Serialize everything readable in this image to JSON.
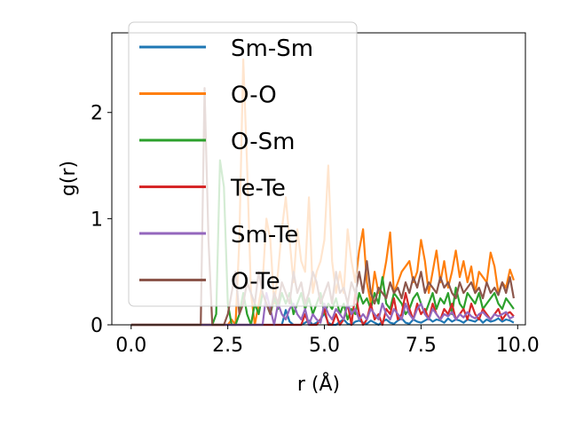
{
  "chart_data": {
    "type": "line",
    "title": "",
    "xlabel": "r (Å)",
    "ylabel": "g(r)",
    "xlim": [
      -0.5,
      10.2
    ],
    "ylim": [
      0,
      2.75
    ],
    "x_ticks": [
      "0.0",
      "2.5",
      "5.0",
      "7.5",
      "10.0"
    ],
    "x_tick_values": [
      0,
      2.5,
      5,
      7.5,
      10
    ],
    "y_ticks": [
      "0",
      "1",
      "2"
    ],
    "y_tick_values": [
      0,
      1,
      2
    ],
    "grid": false,
    "legend_position": "top-left",
    "x": [
      0.0,
      0.1,
      0.2,
      0.3,
      0.4,
      0.5,
      0.6,
      0.7,
      0.8,
      0.9,
      1.0,
      1.1,
      1.2,
      1.3,
      1.4,
      1.5,
      1.6,
      1.7,
      1.8,
      1.9,
      2.0,
      2.1,
      2.2,
      2.3,
      2.4,
      2.5,
      2.6,
      2.7,
      2.8,
      2.9,
      3.0,
      3.1,
      3.2,
      3.3,
      3.4,
      3.5,
      3.6,
      3.7,
      3.8,
      3.9,
      4.0,
      4.1,
      4.2,
      4.3,
      4.4,
      4.5,
      4.6,
      4.7,
      4.8,
      4.9,
      5.0,
      5.1,
      5.2,
      5.3,
      5.4,
      5.5,
      5.6,
      5.7,
      5.8,
      5.9,
      6.0,
      6.1,
      6.2,
      6.3,
      6.4,
      6.5,
      6.6,
      6.7,
      6.8,
      6.9,
      7.0,
      7.1,
      7.2,
      7.3,
      7.4,
      7.5,
      7.6,
      7.7,
      7.8,
      7.9,
      8.0,
      8.1,
      8.2,
      8.3,
      8.4,
      8.5,
      8.6,
      8.7,
      8.8,
      8.9,
      9.0,
      9.1,
      9.2,
      9.3,
      9.4,
      9.5,
      9.6,
      9.7,
      9.8,
      9.9
    ],
    "series": [
      {
        "name": "Sm-Sm",
        "color": "#1f77b4",
        "values": [
          0,
          0,
          0,
          0,
          0,
          0,
          0,
          0,
          0,
          0,
          0,
          0,
          0,
          0,
          0,
          0,
          0,
          0,
          0,
          0,
          0,
          0,
          0,
          0,
          0,
          0,
          0,
          0,
          0,
          0,
          0,
          0,
          0,
          0,
          0,
          0,
          0,
          0,
          0,
          0,
          0.14,
          0.03,
          0,
          0,
          0,
          0.02,
          0.04,
          0,
          0.02,
          0.05,
          0.11,
          0.02,
          0,
          0,
          0.03,
          0.05,
          0.01,
          0,
          0.03,
          0.04,
          0.02,
          0.01,
          0.04,
          0.02,
          0,
          0.03,
          0.05,
          0.02,
          0.01,
          0.04,
          0.06,
          0.02,
          0.01,
          0.05,
          0.03,
          0.02,
          0.04,
          0.06,
          0.03,
          0.05,
          0.04,
          0.02,
          0.06,
          0.03,
          0.05,
          0.04,
          0.02,
          0.05,
          0.04,
          0.03,
          0.06,
          0.02,
          0.05,
          0.03,
          0.04,
          0.06,
          0.03,
          0.05,
          0.04,
          0.02
        ]
      },
      {
        "name": "O-O",
        "color": "#ff7f0e",
        "values": [
          0,
          0,
          0,
          0,
          0,
          0,
          0,
          0,
          0,
          0,
          0,
          0,
          0,
          0,
          0,
          0,
          0,
          0,
          0,
          0,
          0,
          0,
          0,
          0,
          0,
          0,
          0.05,
          0,
          0.8,
          2.5,
          1.5,
          0.3,
          0,
          0.2,
          0.4,
          1.0,
          0.8,
          0.2,
          0.5,
          0.9,
          1.2,
          0.8,
          0.4,
          0.9,
          0.6,
          0.5,
          1.2,
          0.3,
          0.5,
          0.6,
          0.8,
          1.5,
          0.6,
          0.3,
          0.5,
          0.3,
          0.9,
          0.6,
          0.4,
          0.7,
          0.9,
          0.4,
          0.2,
          0.5,
          0.3,
          0.4,
          0.6,
          0.87,
          0.3,
          0.4,
          0.5,
          0.55,
          0.6,
          0.4,
          0.5,
          0.8,
          0.6,
          0.3,
          0.5,
          0.7,
          0.4,
          0.6,
          0.35,
          0.5,
          0.7,
          0.45,
          0.6,
          0.4,
          0.55,
          0.3,
          0.5,
          0.45,
          0.4,
          0.68,
          0.55,
          0.3,
          0.4,
          0.35,
          0.52,
          0.42
        ]
      },
      {
        "name": "O-Sm",
        "color": "#2ca02c",
        "values": [
          0,
          0,
          0,
          0,
          0,
          0,
          0,
          0,
          0,
          0,
          0,
          0,
          0,
          0,
          0,
          0,
          0,
          0,
          0,
          0,
          0,
          0,
          0.1,
          1.55,
          1.3,
          0.2,
          0,
          0,
          0.1,
          0.3,
          0.1,
          0,
          0.2,
          0.1,
          0.3,
          0.2,
          0.1,
          0.25,
          0.15,
          0.3,
          0.2,
          0.3,
          0.1,
          0.2,
          0.3,
          0.15,
          0.25,
          0.1,
          0.2,
          0.3,
          0.1,
          0.2,
          0.15,
          0.25,
          0.1,
          0.2,
          0.05,
          0.15,
          0.1,
          0.3,
          0.2,
          0.25,
          0.15,
          0.3,
          0.2,
          0.45,
          0.2,
          0.15,
          0.3,
          0.25,
          0.2,
          0.1,
          0.15,
          0.25,
          0.3,
          0.2,
          0.1,
          0.2,
          0.3,
          0.15,
          0.25,
          0.2,
          0.3,
          0.1,
          0.35,
          0.2,
          0.15,
          0.3,
          0.25,
          0.2,
          0.3,
          0.15,
          0.2,
          0.25,
          0.3,
          0.2,
          0.15,
          0.25,
          0.2,
          0.15
        ]
      },
      {
        "name": "Te-Te",
        "color": "#d62728",
        "values": [
          0,
          0,
          0,
          0,
          0,
          0,
          0,
          0,
          0,
          0,
          0,
          0,
          0,
          0,
          0,
          0,
          0,
          0,
          0,
          0,
          0,
          0,
          0,
          0,
          0,
          0,
          0,
          0,
          0,
          0,
          0,
          0,
          0,
          0,
          0,
          0,
          0,
          0,
          0,
          0,
          0,
          0,
          0,
          0,
          0,
          0.1,
          0,
          0,
          0,
          0.05,
          0.15,
          0,
          0,
          0.1,
          0,
          0.05,
          0.2,
          0,
          0.3,
          0.1,
          0,
          0.05,
          0.2,
          0.05,
          0.1,
          0,
          0.15,
          0.1,
          0.25,
          0.05,
          0.1,
          0.3,
          0.15,
          0.05,
          0.2,
          0.1,
          0.15,
          0.05,
          0.2,
          0.1,
          0.05,
          0.15,
          0.1,
          0.2,
          0.05,
          0.1,
          0.15,
          0.05,
          0.2,
          0.1,
          0.05,
          0.15,
          0.1,
          0.05,
          0.1,
          0.15,
          0.05,
          0.1,
          0.12,
          0.08
        ]
      },
      {
        "name": "Sm-Te",
        "color": "#9467bd",
        "values": [
          0,
          0,
          0,
          0,
          0,
          0,
          0,
          0,
          0,
          0,
          0,
          0,
          0,
          0,
          0,
          0,
          0,
          0,
          0,
          0,
          0,
          0,
          0,
          0,
          0,
          0,
          0,
          0,
          0,
          0,
          0,
          0,
          0,
          0,
          0,
          0.3,
          0.15,
          0,
          0.2,
          0.1,
          0.05,
          0.15,
          0.2,
          0.1,
          0.05,
          0.15,
          0,
          0.1,
          0.05,
          0.02,
          0.2,
          0.1,
          0.05,
          0.15,
          0.1,
          0.05,
          0.2,
          0.1,
          0.15,
          0.05,
          0.1,
          0.05,
          0.15,
          0.1,
          0.05,
          0.2,
          0.1,
          0.05,
          0.15,
          0.1,
          0.05,
          0.2,
          0.1,
          0.05,
          0.15,
          0.2,
          0.1,
          0.05,
          0.15,
          0.1,
          0.05,
          0.1,
          0.08,
          0.12,
          0.05,
          0.1,
          0.07,
          0.12,
          0.08,
          0.06,
          0.1,
          0.12,
          0.08,
          0.05,
          0.1,
          0.08,
          0.1,
          0.12,
          0.06,
          0.08
        ]
      },
      {
        "name": "O-Te",
        "color": "#8c564b",
        "values": [
          0,
          0,
          0,
          0,
          0,
          0,
          0,
          0,
          0,
          0,
          0,
          0,
          0,
          0,
          0,
          0,
          0,
          0,
          0,
          2.23,
          0.8,
          0,
          0,
          0,
          0,
          0.1,
          0.3,
          0.5,
          0.1,
          0.2,
          0.4,
          0.3,
          0.2,
          0.5,
          0.3,
          0.2,
          0.1,
          0.3,
          0.2,
          0.4,
          0.3,
          0.2,
          0.5,
          0.3,
          0.4,
          0.2,
          0.3,
          0.5,
          0.4,
          0.2,
          0.3,
          0.4,
          0.2,
          0.5,
          0.3,
          0.35,
          0.2,
          0.4,
          0.3,
          0.5,
          0.3,
          0.6,
          0.3,
          0.2,
          0.35,
          0.3,
          0.25,
          0.4,
          0.3,
          0.35,
          0.25,
          0.4,
          0.3,
          0.45,
          0.35,
          0.5,
          0.3,
          0.4,
          0.35,
          0.3,
          0.45,
          0.35,
          0.4,
          0.3,
          0.25,
          0.4,
          0.3,
          0.35,
          0.4,
          0.3,
          0.35,
          0.25,
          0.4,
          0.3,
          0.35,
          0.28,
          0.4,
          0.3,
          0.45,
          0.25
        ]
      }
    ]
  }
}
